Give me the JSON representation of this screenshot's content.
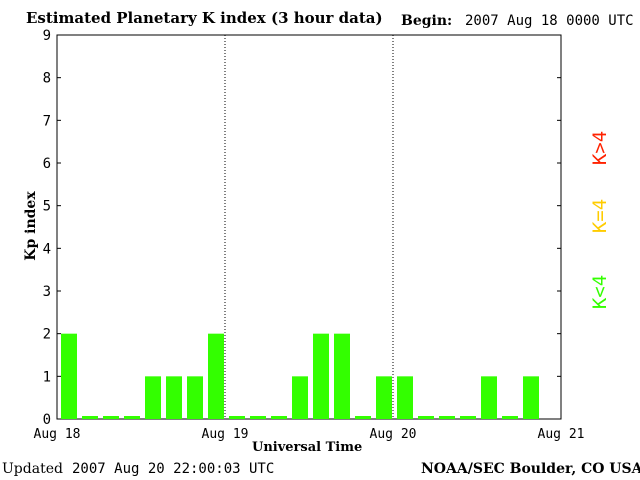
{
  "header": {
    "title": "Estimated Planetary K index (3 hour data)",
    "begin_label": "Begin:",
    "begin_value": "2007 Aug 18 0000 UTC"
  },
  "footer": {
    "updated_label": "Updated",
    "updated_value": "2007 Aug 20 22:00:03 UTC",
    "source": "NOAA/SEC Boulder, CO USA"
  },
  "legend": {
    "items": [
      {
        "label": "K<4",
        "color": "#33ff00"
      },
      {
        "label": "K=4",
        "color": "#ffcc00"
      },
      {
        "label": "K>4",
        "color": "#ff2200"
      }
    ]
  },
  "chart_data": {
    "type": "bar",
    "title": "Estimated Planetary K index (3 hour data)",
    "xlabel": "Universal Time",
    "ylabel": "Kp index",
    "ylim": [
      0,
      9
    ],
    "yticks": [
      0,
      1,
      2,
      3,
      4,
      5,
      6,
      7,
      8,
      9
    ],
    "x_tick_labels": [
      "Aug 18",
      "Aug 19",
      "Aug 20",
      "Aug 21"
    ],
    "grid": false,
    "day_separators": [
      "Aug 19",
      "Aug 20"
    ],
    "bar_color": "#33ff00",
    "values": [
      2,
      0,
      0,
      0,
      1,
      1,
      1,
      2,
      0,
      0,
      0,
      1,
      2,
      2,
      0,
      1,
      1,
      0,
      0,
      0,
      1,
      0,
      1
    ]
  }
}
